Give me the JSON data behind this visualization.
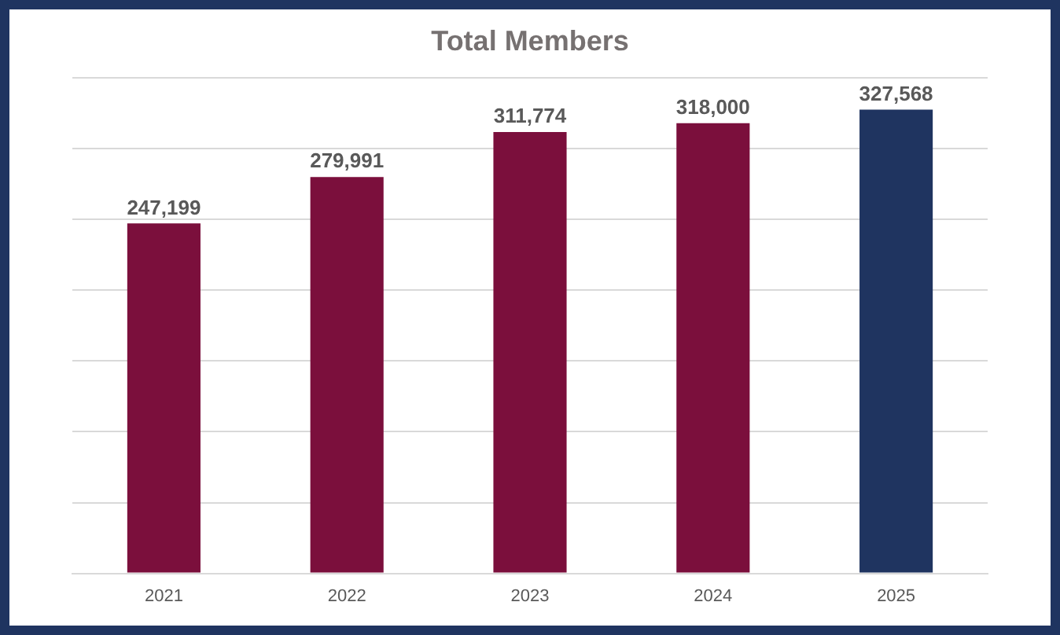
{
  "chart_data": {
    "type": "bar",
    "title": "Total Members",
    "categories": [
      "2021",
      "2022",
      "2023",
      "2024",
      "2025"
    ],
    "values": [
      247199,
      279991,
      311774,
      318000,
      327568
    ],
    "value_labels": [
      "247,199",
      "279,991",
      "311,774",
      "318,000",
      "327,568"
    ],
    "colors": [
      "#7b0f3c",
      "#7b0f3c",
      "#7b0f3c",
      "#7b0f3c",
      "#1f3460"
    ],
    "grid": "y",
    "tick_labels": "x",
    "legend": false
  }
}
